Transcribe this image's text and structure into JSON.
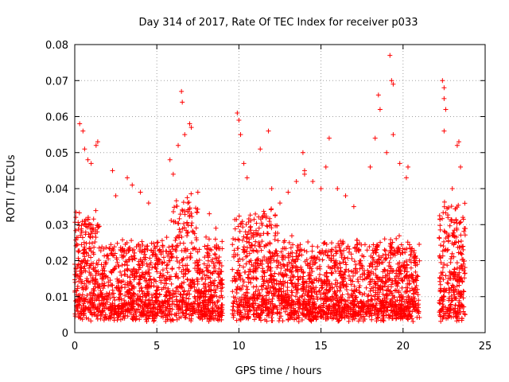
{
  "chart_data": {
    "type": "scatter",
    "title": "Day 314 of 2017, Rate Of TEC Index for receiver p033",
    "xlabel": "GPS time / hours",
    "ylabel": "ROTI / TECUs",
    "xlim": [
      0,
      25
    ],
    "ylim": [
      0,
      0.08
    ],
    "x_ticks": [
      "0",
      "5",
      "10",
      "15",
      "20",
      "25"
    ],
    "y_ticks": [
      "0",
      "0.01",
      "0.02",
      "0.03",
      "0.04",
      "0.05",
      "0.06",
      "0.07",
      "0.08"
    ],
    "grid": true,
    "marker": "+",
    "color": "#ff0000",
    "data_gaps_hours": [
      [
        9.0,
        9.6
      ],
      [
        21.0,
        22.2
      ],
      [
        23.8,
        25.0
      ]
    ],
    "series": [
      {
        "points": [
          [
            0.3,
            0.058
          ],
          [
            0.5,
            0.056
          ],
          [
            0.6,
            0.051
          ],
          [
            0.8,
            0.048
          ],
          [
            1.0,
            0.047
          ],
          [
            1.3,
            0.052
          ],
          [
            1.4,
            0.053
          ],
          [
            2.3,
            0.045
          ],
          [
            2.5,
            0.038
          ],
          [
            3.2,
            0.043
          ],
          [
            3.5,
            0.041
          ],
          [
            4.0,
            0.039
          ],
          [
            4.5,
            0.036
          ],
          [
            5.8,
            0.048
          ],
          [
            6.0,
            0.044
          ],
          [
            6.3,
            0.052
          ],
          [
            6.5,
            0.067
          ],
          [
            6.55,
            0.064
          ],
          [
            6.7,
            0.055
          ],
          [
            7.0,
            0.058
          ],
          [
            7.1,
            0.057
          ],
          [
            7.5,
            0.039
          ],
          [
            8.2,
            0.033
          ],
          [
            8.6,
            0.029
          ],
          [
            9.9,
            0.061
          ],
          [
            10.0,
            0.059
          ],
          [
            10.1,
            0.055
          ],
          [
            10.3,
            0.047
          ],
          [
            10.5,
            0.043
          ],
          [
            11.3,
            0.051
          ],
          [
            11.8,
            0.056
          ],
          [
            12.0,
            0.04
          ],
          [
            12.5,
            0.036
          ],
          [
            13.0,
            0.039
          ],
          [
            13.5,
            0.042
          ],
          [
            13.9,
            0.05
          ],
          [
            14.0,
            0.045
          ],
          [
            14.0,
            0.044
          ],
          [
            14.5,
            0.042
          ],
          [
            15.0,
            0.04
          ],
          [
            15.3,
            0.046
          ],
          [
            15.5,
            0.054
          ],
          [
            16.0,
            0.04
          ],
          [
            16.5,
            0.038
          ],
          [
            17.0,
            0.035
          ],
          [
            18.0,
            0.046
          ],
          [
            18.3,
            0.054
          ],
          [
            18.5,
            0.066
          ],
          [
            18.6,
            0.062
          ],
          [
            19.0,
            0.05
          ],
          [
            19.2,
            0.077
          ],
          [
            19.3,
            0.07
          ],
          [
            19.4,
            0.069
          ],
          [
            19.4,
            0.055
          ],
          [
            19.8,
            0.047
          ],
          [
            20.2,
            0.043
          ],
          [
            20.3,
            0.046
          ],
          [
            22.4,
            0.07
          ],
          [
            22.5,
            0.068
          ],
          [
            22.5,
            0.065
          ],
          [
            22.6,
            0.062
          ],
          [
            22.5,
            0.056
          ],
          [
            23.0,
            0.04
          ],
          [
            23.3,
            0.052
          ],
          [
            23.4,
            0.053
          ],
          [
            23.5,
            0.046
          ]
        ]
      }
    ]
  }
}
